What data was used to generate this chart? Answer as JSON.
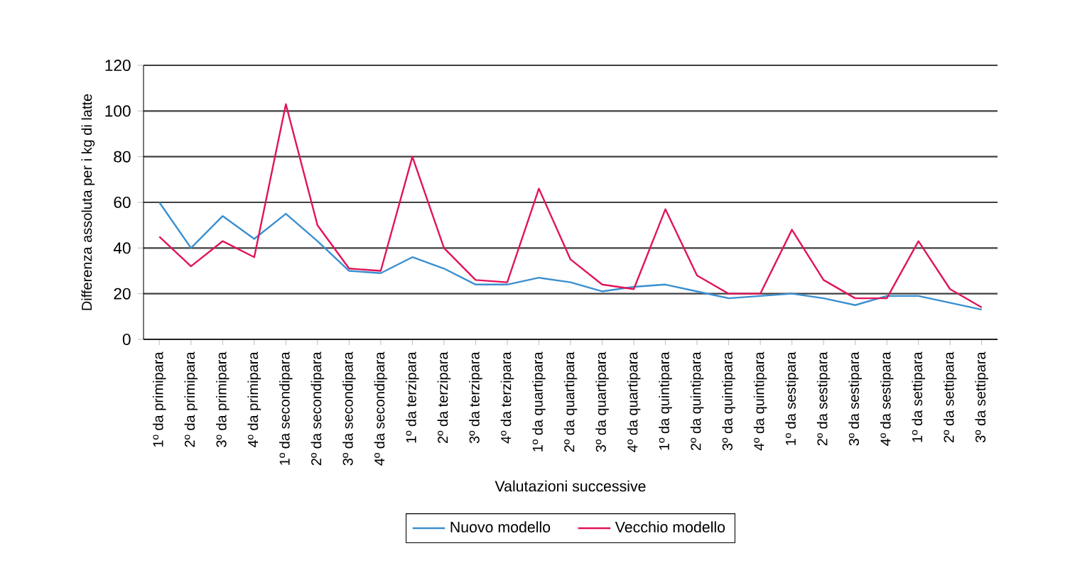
{
  "chart_data": {
    "type": "line",
    "xlabel": "Valutazioni successive",
    "ylabel": "Differenza assoluta per i kg di latte",
    "categories": [
      "1º da primipara",
      "2º da primipara",
      "3º da primipara",
      "4º da primipara",
      "1º da secondipara",
      "2º da secondipara",
      "3º da secondipara",
      "4º da secondipara",
      "1º da terzipara",
      "2º da terzipara",
      "3º da terzipara",
      "4º da terzipara",
      "1º da quartipara",
      "2º da quartipara",
      "3º da quartipara",
      "4º da quartipara",
      "1º da quintipara",
      "2º da quintipara",
      "3º da quintipara",
      "4º da quintipara",
      "1º da sestipara",
      "2º da sestipara",
      "3º da sestipara",
      "4º da sestipara",
      "1º da settipara",
      "2º da settipara",
      "3º da settipara"
    ],
    "series": [
      {
        "name": "Nuovo modello",
        "color": "#3a8fd0",
        "values": [
          60,
          40,
          54,
          44,
          55,
          43,
          30,
          29,
          36,
          31,
          24,
          24,
          27,
          25,
          21,
          23,
          24,
          21,
          18,
          19,
          20,
          18,
          15,
          19,
          19,
          16,
          13
        ]
      },
      {
        "name": "Vecchio modello",
        "color": "#e0145a",
        "values": [
          45,
          32,
          43,
          36,
          103,
          50,
          31,
          30,
          80,
          40,
          26,
          25,
          66,
          35,
          24,
          22,
          57,
          28,
          20,
          20,
          48,
          26,
          18,
          18,
          43,
          22,
          14
        ]
      }
    ],
    "ylim": [
      0,
      120
    ],
    "yticks": [
      0,
      20,
      40,
      60,
      80,
      100,
      120
    ],
    "grid": "y",
    "legend": "bottom",
    "marker": "none",
    "line_style": "solid"
  }
}
